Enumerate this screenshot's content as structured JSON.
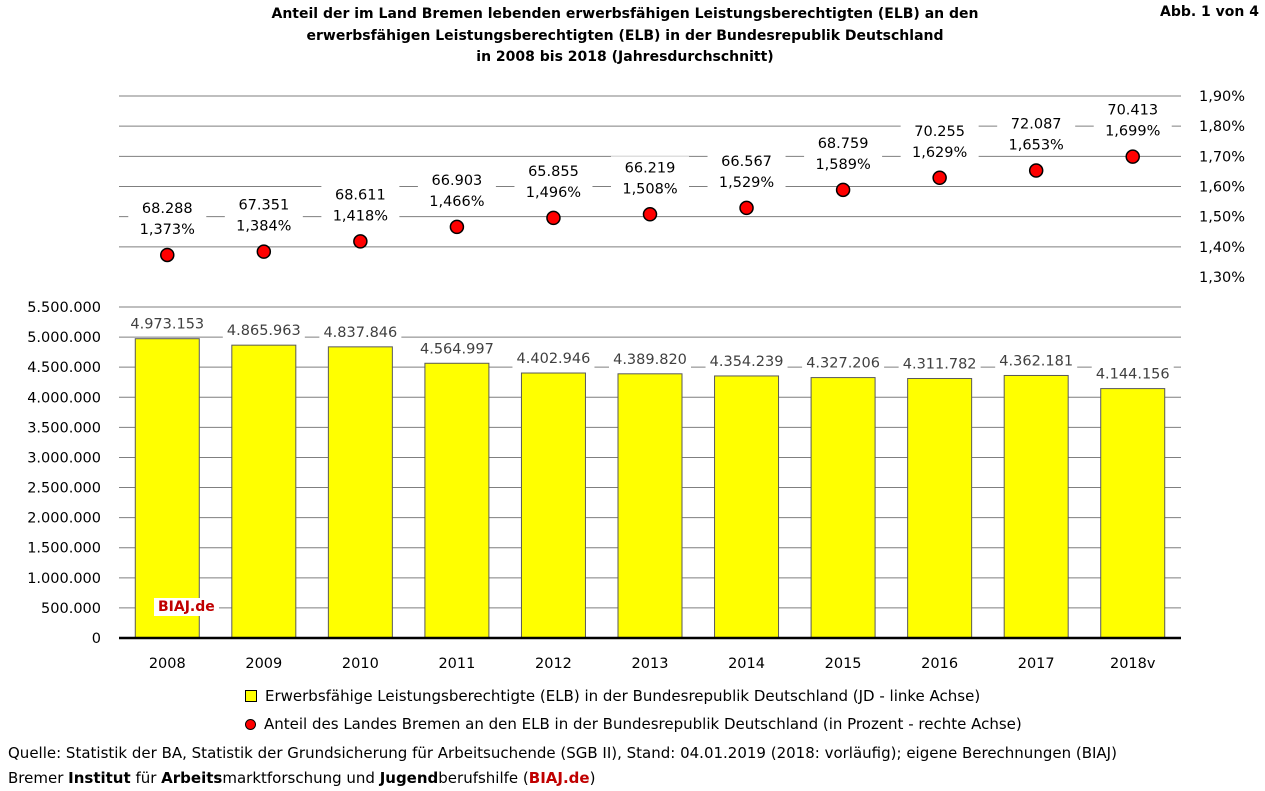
{
  "title": {
    "line1": "Anteil der im Land Bremen lebenden erwerbsfähigen Leistungsberechtigten (ELB) an den",
    "line2": "erwerbsfähigen Leistungsberechtigten (ELB) in der Bundesrepublik Deutschland",
    "line3": "in 2008 bis 2018 (Jahresdurchschnitt)"
  },
  "figure_label": "Abb. 1 von 4",
  "watermark": "BIAJ.de",
  "legend": {
    "bar": "Erwerbsfähige Leistungsberechtigte (ELB) in der Bundesrepublik Deutschland (JD - linke Achse)",
    "dot": "Anteil des Landes Bremen an den ELB in der Bundesrepublik Deutschland (in Prozent - rechte Achse)"
  },
  "footer": {
    "line1": "Quelle: Statistik der BA, Statistik der Grundsicherung für Arbeitsuchende (SGB II), Stand: 04.01.2019 (2018: vorläufig); eigene Berechnungen (BIAJ)",
    "line2": {
      "p1": "Bremer ",
      "b1": "Institut",
      "p2": " für ",
      "b2": "Arbeits",
      "p3": "marktforschung und ",
      "b3": "Jugend",
      "p4": "berufshilfe (",
      "brand": "BIAJ.de",
      "p5": ")"
    }
  },
  "chart_data": {
    "type": "bar",
    "categories": [
      "2008",
      "2009",
      "2010",
      "2011",
      "2012",
      "2013",
      "2014",
      "2015",
      "2016",
      "2017",
      "2018v"
    ],
    "series": [
      {
        "values": [
          4973153,
          4865963,
          4837846,
          4564997,
          4402946,
          4389820,
          4354239,
          4327206,
          4311782,
          4362181,
          4144156
        ],
        "labels": [
          "4.973.153",
          "4.865.963",
          "4.837.846",
          "4.564.997",
          "4.402.946",
          "4.389.820",
          "4.354.239",
          "4.327.206",
          "4.311.782",
          "4.362.181",
          "4.144.156"
        ],
        "axis": "left",
        "color": "#ffff00"
      },
      {
        "type": "scatter",
        "values": [
          1.373,
          1.384,
          1.418,
          1.466,
          1.496,
          1.508,
          1.529,
          1.589,
          1.629,
          1.653,
          1.699
        ],
        "labels": [
          "1,373%",
          "1,384%",
          "1,418%",
          "1,466%",
          "1,496%",
          "1,508%",
          "1,529%",
          "1,589%",
          "1,629%",
          "1,653%",
          "1,699%"
        ],
        "counts": [
          "68.288",
          "67.351",
          "68.611",
          "66.903",
          "65.855",
          "66.219",
          "66.567",
          "68.759",
          "70.255",
          "72.087",
          "70.413"
        ],
        "axis": "right",
        "color": "#ff0000"
      }
    ],
    "left_axis": {
      "ylim": [
        0,
        5500000
      ],
      "ticks": [
        0,
        500000,
        1000000,
        1500000,
        2000000,
        2500000,
        3000000,
        3500000,
        4000000,
        4500000,
        5000000,
        5500000
      ],
      "tick_labels": [
        "0",
        "500.000",
        "1.000.000",
        "1.500.000",
        "2.000.000",
        "2.500.000",
        "3.000.000",
        "3.500.000",
        "4.000.000",
        "4.500.000",
        "5.000.000",
        "5.500.000"
      ]
    },
    "right_axis": {
      "ylim": [
        1.3,
        1.9
      ],
      "ticks": [
        1.3,
        1.4,
        1.5,
        1.6,
        1.7,
        1.8,
        1.9
      ],
      "tick_labels": [
        "1,30%",
        "1,40%",
        "1,50%",
        "1,60%",
        "1,70%",
        "1,80%",
        "1,90%"
      ]
    },
    "grid": true
  }
}
